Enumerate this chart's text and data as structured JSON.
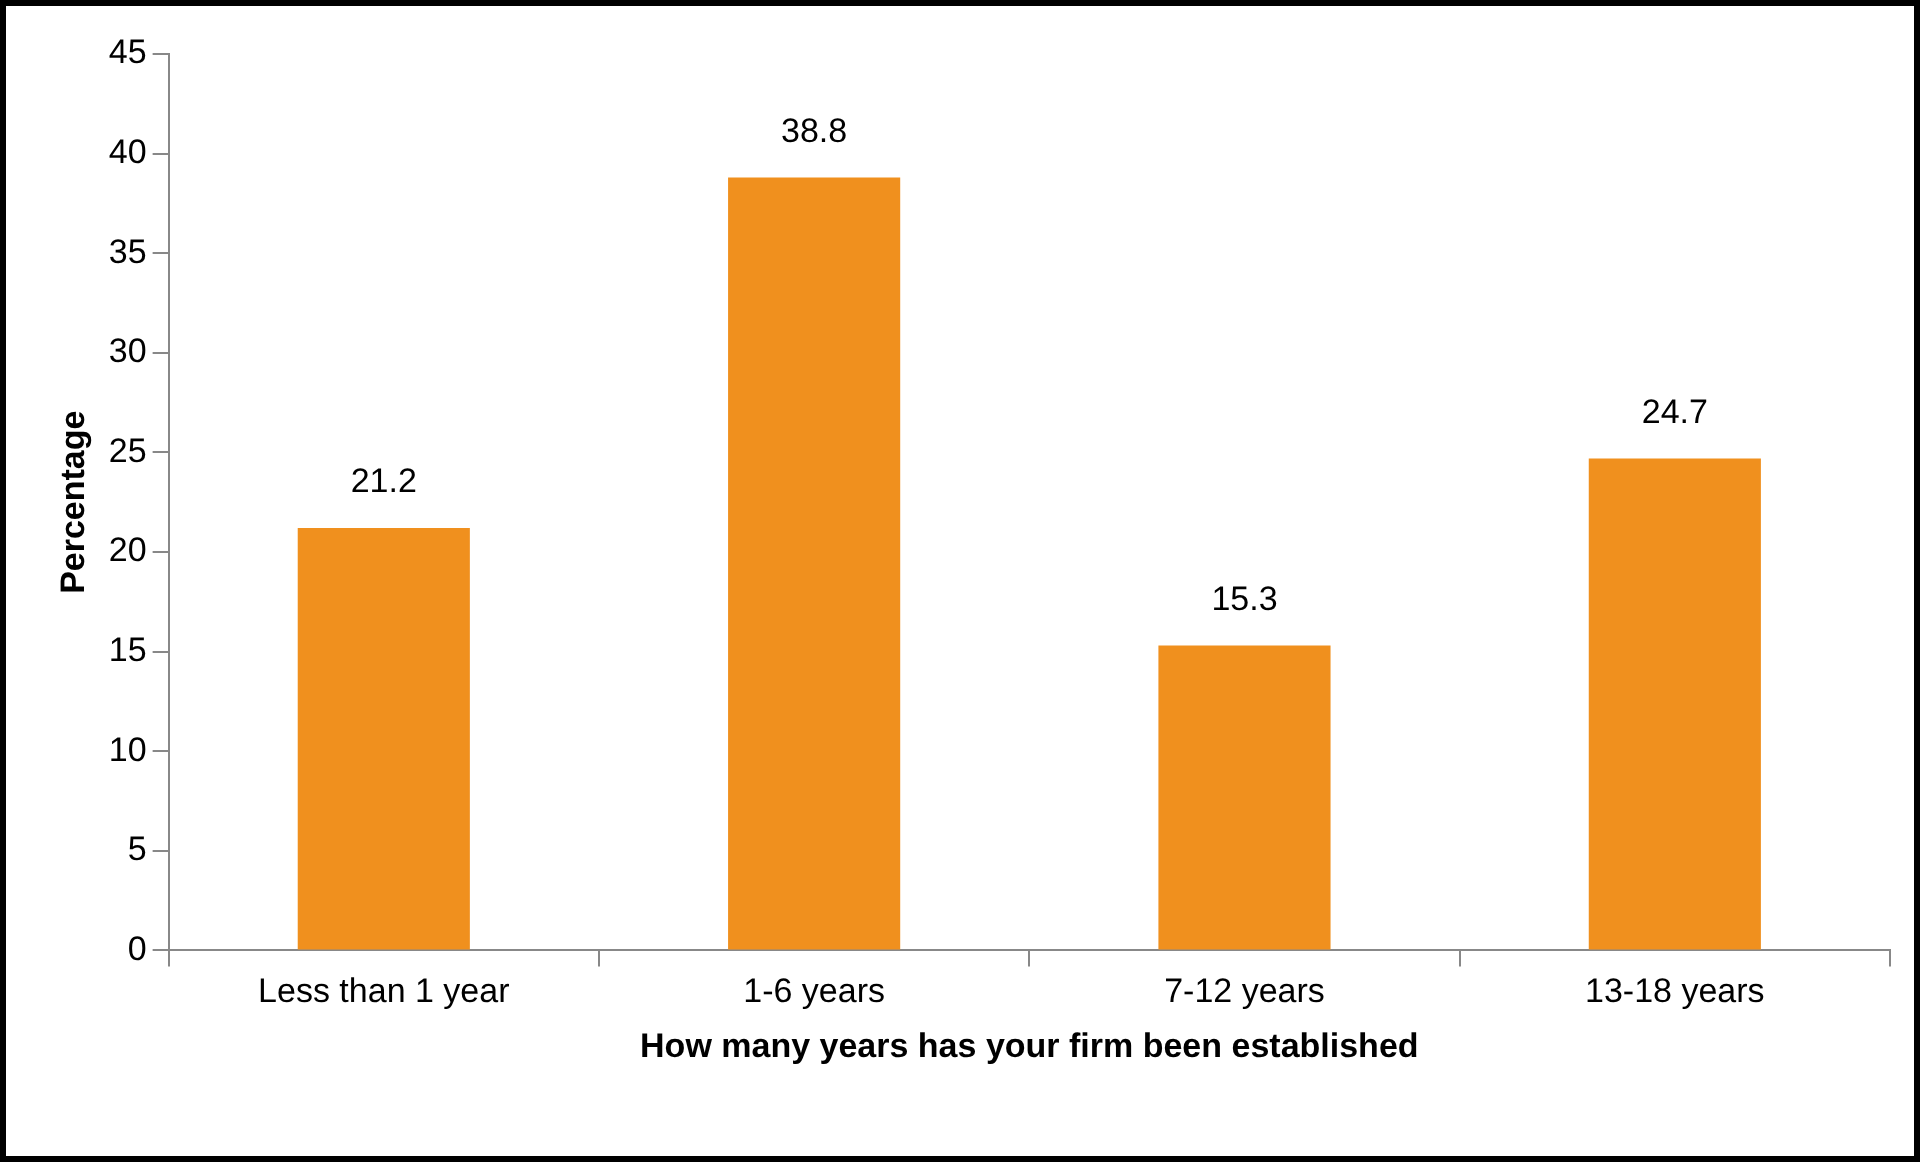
{
  "chart_data": {
    "type": "bar",
    "xlabel": "How many years has your firm been established",
    "ylabel": "Percentage",
    "categories": [
      "Less than 1 year",
      "1-6 years",
      "7-12 years",
      "13-18 years"
    ],
    "values": [
      21.2,
      38.8,
      15.3,
      24.7
    ],
    "color": "#f0901e",
    "ylim": [
      0,
      45
    ],
    "yticks": [
      0,
      5,
      10,
      15,
      20,
      25,
      30,
      35,
      40,
      45
    ],
    "grid": false,
    "legend": false,
    "data_labels": true
  }
}
